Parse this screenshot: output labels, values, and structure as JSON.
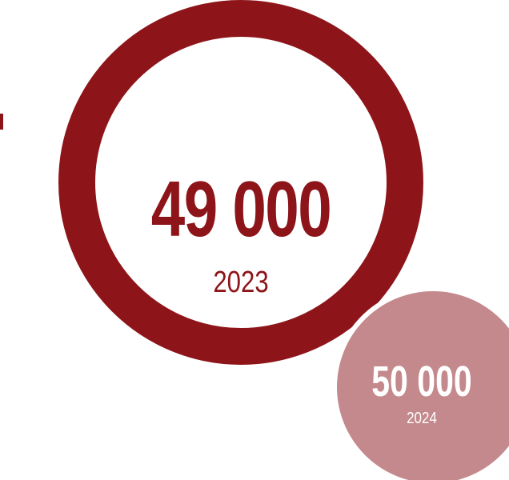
{
  "colors": {
    "primary": "#8d151a",
    "secondary": "#c4898c",
    "background": "#ffffff"
  },
  "main_stat": {
    "value": "49 000",
    "year": "2023"
  },
  "secondary_stat": {
    "value": "50 000",
    "year": "2024"
  }
}
